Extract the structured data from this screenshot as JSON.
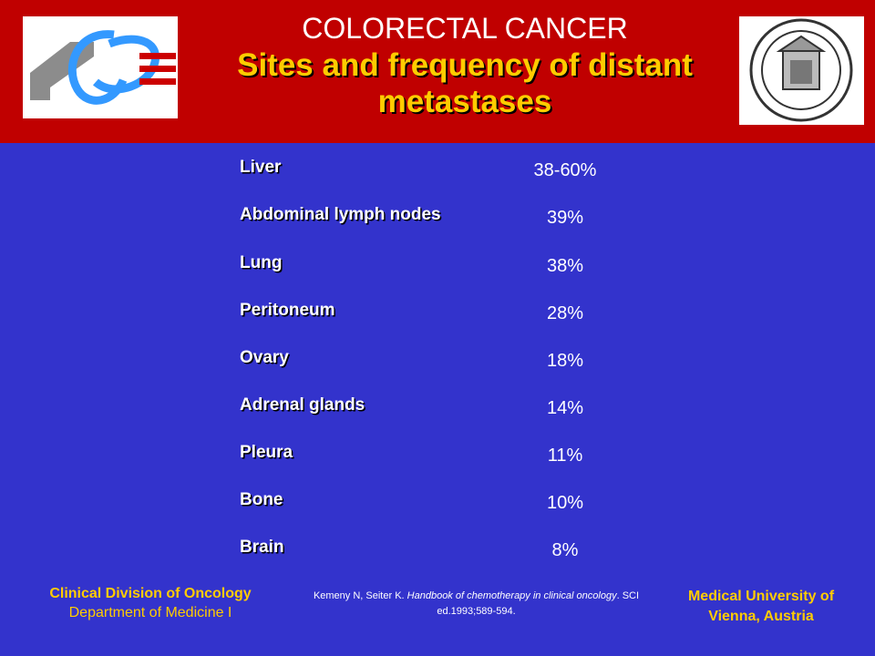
{
  "header": {
    "title": "COLORECTAL CANCER",
    "subtitle_line1": "Sites and frequency of distant",
    "subtitle_line2": "metastases"
  },
  "sites": [
    {
      "label": "Liver",
      "value": "38-60%"
    },
    {
      "label": "Abdominal lymph nodes",
      "value": "39%"
    },
    {
      "label": "Lung",
      "value": "38%"
    },
    {
      "label": "Peritoneum",
      "value": "28%"
    },
    {
      "label": "Ovary",
      "value": "18%"
    },
    {
      "label": "Adrenal glands",
      "value": "14%"
    },
    {
      "label": "Pleura",
      "value": "11%"
    },
    {
      "label": "Bone",
      "value": "10%"
    },
    {
      "label": "Brain",
      "value": "8%"
    }
  ],
  "footer": {
    "left_line1": "Clinical Division of Oncology",
    "left_line2": "Department of Medicine I",
    "citation_authors": "Kemeny N, Seiter K.",
    "citation_title": "Handbook of chemotherapy in clinical oncology",
    "citation_rest": "SCI ed.1993;589-594.",
    "right_line1": "Medical University of",
    "right_line2": "Vienna, Austria"
  },
  "colors": {
    "background": "#3333cc",
    "header_band": "#c00000",
    "accent_yellow": "#ffcc00"
  }
}
